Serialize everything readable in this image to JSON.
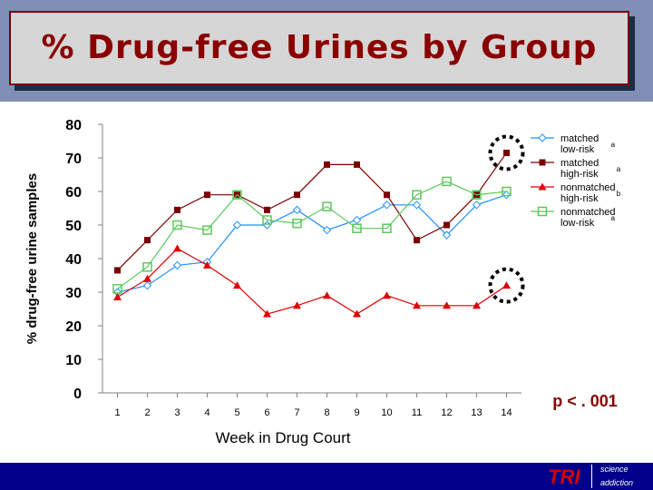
{
  "slide": {
    "title": "% Drug-free Urines by Group",
    "p_value": "p < . 001",
    "logo_text": "TRI",
    "logo_line1": "science",
    "logo_line2": "addiction"
  },
  "colors": {
    "background": "#7f8fb6",
    "title_text": "#8a0000",
    "matched_low_risk": "#1e90ff",
    "matched_high_risk": "#7a0000",
    "nonmatched_high_risk": "#e00000",
    "nonmatched_low_risk": "#5cc85c",
    "p_value": "#8a0000",
    "footer": "#00008a"
  },
  "chart_data": {
    "type": "line",
    "title": "% Drug-free Urines by Group",
    "xlabel": "Week in Drug Court",
    "ylabel": "% drug-free urine samples",
    "x": [
      1,
      2,
      3,
      4,
      5,
      6,
      7,
      8,
      9,
      10,
      11,
      12,
      13,
      14
    ],
    "ylim": [
      0,
      80
    ],
    "yticks": [
      0,
      10,
      20,
      30,
      40,
      50,
      60,
      70,
      80
    ],
    "grid": false,
    "legend_position": "top-right",
    "series": [
      {
        "name": "matched low-risk",
        "superscript": "a",
        "marker": "diamond",
        "color": "#1e90ff",
        "values": [
          30,
          32,
          38,
          39,
          50,
          50,
          54.5,
          48.5,
          51.5,
          56,
          56,
          47,
          56,
          59
        ]
      },
      {
        "name": "matched high-risk",
        "superscript": "a",
        "marker": "square",
        "color": "#7a0000",
        "values": [
          36.5,
          45.5,
          54.5,
          59,
          59,
          54.5,
          59,
          68,
          68,
          59,
          45.5,
          50,
          59,
          71.5
        ]
      },
      {
        "name": "nonmatched high-risk",
        "superscript": "b",
        "marker": "triangle",
        "color": "#e00000",
        "values": [
          28.5,
          34,
          43,
          38,
          32,
          23.5,
          26,
          29,
          23.5,
          29,
          26,
          26,
          26,
          32
        ]
      },
      {
        "name": "nonmatched low-risk",
        "superscript": "a",
        "marker": "open-square",
        "color": "#5cc85c",
        "values": [
          31,
          37.5,
          50,
          48.5,
          59,
          51.5,
          50.5,
          55.5,
          49,
          49,
          59,
          63,
          59,
          60
        ]
      }
    ],
    "annotations": [
      {
        "type": "dashed-circle",
        "x": 14,
        "y": 71.5
      },
      {
        "type": "dashed-circle",
        "x": 14,
        "y": 32
      }
    ]
  }
}
